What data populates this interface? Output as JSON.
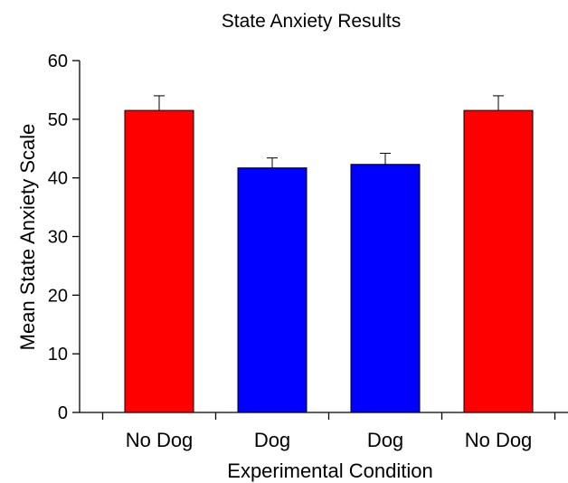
{
  "chart_data": {
    "type": "bar",
    "title": "State Anxiety Results",
    "xlabel": "Experimental Condition",
    "ylabel": "Mean State Anxiety Scale",
    "ylim": [
      0,
      60
    ],
    "yticks": [
      0,
      10,
      20,
      30,
      40,
      50,
      60
    ],
    "categories": [
      "No Dog",
      "Dog",
      "Dog",
      "No Dog"
    ],
    "values": [
      51.5,
      41.7,
      42.3,
      51.5
    ],
    "errors": [
      2.5,
      1.7,
      1.9,
      2.5
    ],
    "colors": [
      "#ff0000",
      "#0000ff",
      "#0000ff",
      "#ff0000"
    ],
    "grid": false,
    "legend": "none"
  }
}
